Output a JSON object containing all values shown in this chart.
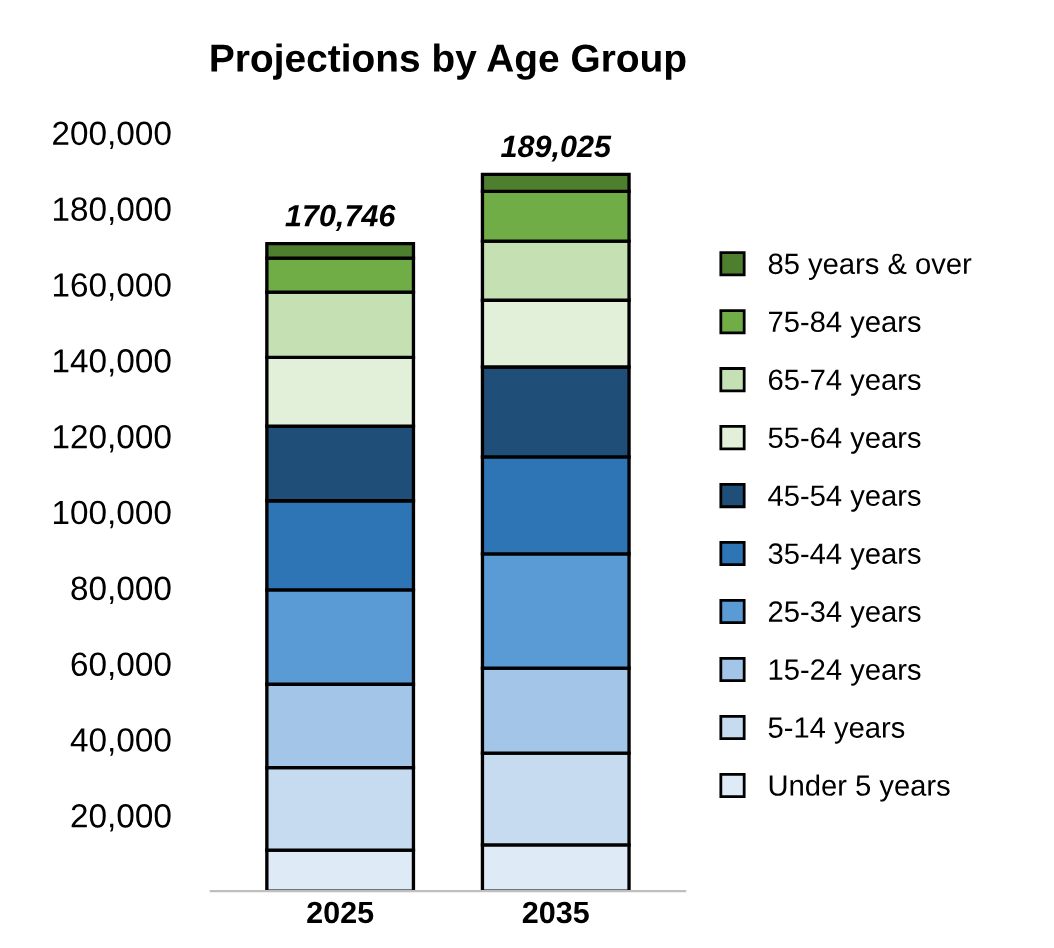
{
  "chart_data": {
    "type": "bar",
    "title": "Projections by Age Group",
    "stacked": true,
    "categories": [
      "2025",
      "2035"
    ],
    "series": [
      {
        "name": "Under 5 years",
        "color": "#deebf7",
        "values": [
          10800,
          12200
        ]
      },
      {
        "name": "5-14 years",
        "color": "#c6dbef",
        "values": [
          21746,
          24200
        ]
      },
      {
        "name": "15-24 years",
        "color": "#a3c6e8",
        "values": [
          22000,
          22400
        ]
      },
      {
        "name": "25-34 years",
        "color": "#5b9bd5",
        "values": [
          24900,
          30125
        ]
      },
      {
        "name": "35-44 years",
        "color": "#2e75b6",
        "values": [
          23500,
          25600
        ]
      },
      {
        "name": "45-54 years",
        "color": "#1f4e79",
        "values": [
          19700,
          23700
        ]
      },
      {
        "name": "55-64 years",
        "color": "#e2efd9",
        "values": [
          18100,
          17600
        ]
      },
      {
        "name": "65-74 years",
        "color": "#c5e0b3",
        "values": [
          17200,
          15600
        ]
      },
      {
        "name": "75-84 years",
        "color": "#70ad47",
        "values": [
          9000,
          13100
        ]
      },
      {
        "name": "85 years & over",
        "color": "#4e7f2f",
        "values": [
          3800,
          4500
        ]
      }
    ],
    "totals": [
      "170,746",
      "189,025"
    ],
    "ylim": [
      0,
      200000
    ],
    "yticks": [
      {
        "value": 20000,
        "label": "20,000"
      },
      {
        "value": 40000,
        "label": "40,000"
      },
      {
        "value": 60000,
        "label": "60,000"
      },
      {
        "value": 80000,
        "label": "80,000"
      },
      {
        "value": 100000,
        "label": "100,000"
      },
      {
        "value": 120000,
        "label": "120,000"
      },
      {
        "value": 140000,
        "label": "140,000"
      },
      {
        "value": 160000,
        "label": "160,000"
      },
      {
        "value": 180000,
        "label": "180,000"
      },
      {
        "value": 200000,
        "label": "200,000"
      }
    ],
    "grid": false,
    "legend": "right"
  }
}
